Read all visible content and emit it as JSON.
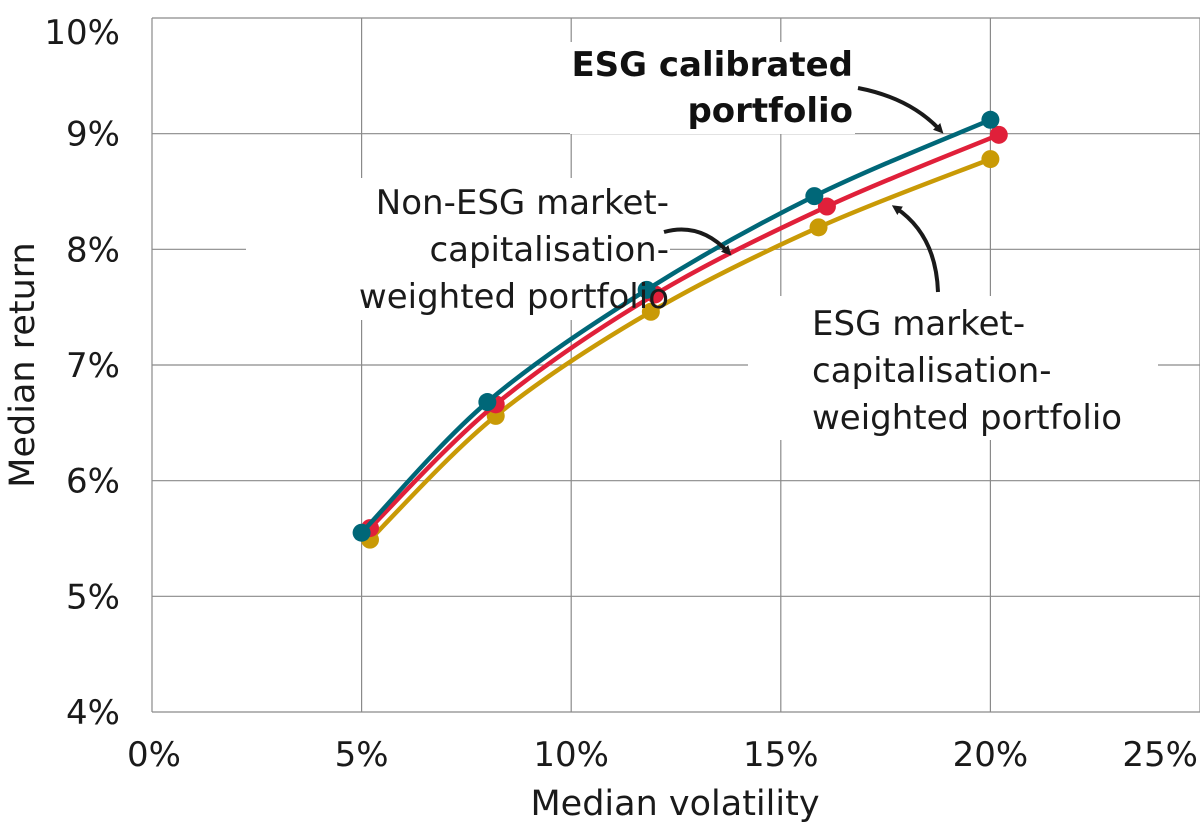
{
  "chart_data": {
    "type": "line",
    "xlabel": "Median volatility",
    "ylabel": "Median return",
    "xlim": [
      0,
      25
    ],
    "ylim": [
      4,
      10
    ],
    "x_ticks": [
      "0%",
      "5%",
      "10%",
      "15%",
      "20%",
      "25%"
    ],
    "y_ticks": [
      "4%",
      "5%",
      "6%",
      "7%",
      "8%",
      "9%",
      "10%"
    ],
    "grid": true,
    "series": [
      {
        "name": "ESG calibrated portfolio",
        "color": "#006778",
        "points": [
          [
            5.0,
            5.55
          ],
          [
            8.0,
            6.68
          ],
          [
            11.8,
            7.65
          ],
          [
            15.8,
            8.46
          ],
          [
            20.0,
            9.12
          ]
        ]
      },
      {
        "name": "Non-ESG market-capitalisation-weighted portfolio",
        "color": "#e0203a",
        "points": [
          [
            5.2,
            5.59
          ],
          [
            8.2,
            6.66
          ],
          [
            12.0,
            7.61
          ],
          [
            16.1,
            8.37
          ],
          [
            20.2,
            8.99
          ]
        ]
      },
      {
        "name": "ESG market-capitalisation-weighted portfolio",
        "color": "#c99a06",
        "points": [
          [
            5.2,
            5.49
          ],
          [
            8.2,
            6.56
          ],
          [
            11.9,
            7.46
          ],
          [
            15.9,
            8.19
          ],
          [
            20.0,
            8.78
          ]
        ]
      }
    ],
    "annotations": [
      {
        "lines": [
          "ESG calibrated",
          "portfolio"
        ],
        "bold": true
      },
      {
        "lines": [
          "Non-ESG market-",
          "capitalisation-",
          "weighted portfolio"
        ],
        "bold": false
      },
      {
        "lines": [
          "ESG market-",
          "capitalisation-",
          "weighted portfolio"
        ],
        "bold": false
      }
    ]
  }
}
